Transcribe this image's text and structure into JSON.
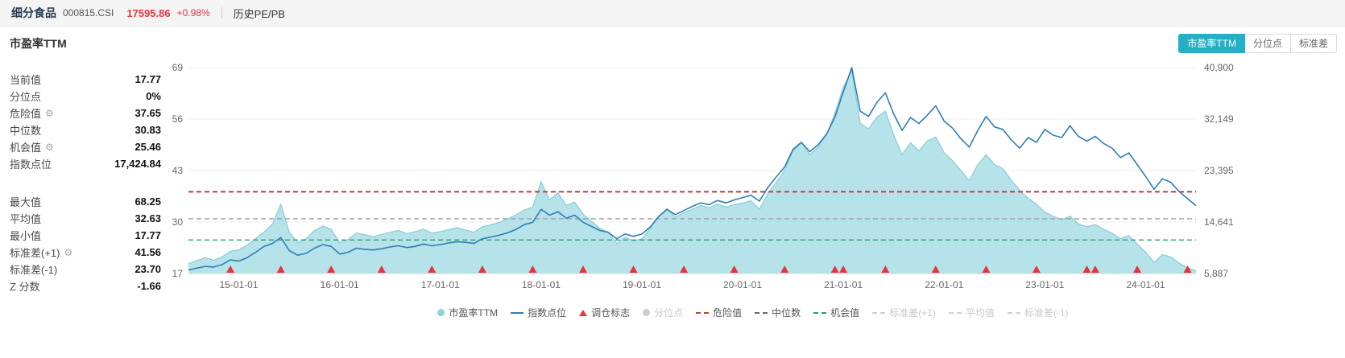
{
  "header": {
    "title": "细分食品",
    "code": "000815.CSI",
    "price": "17595.86",
    "change": "+0.98%",
    "nav_label": "历史PE/PB"
  },
  "section": {
    "title": "市盈率TTM",
    "tabs": [
      {
        "label": "市盈率TTM",
        "active": true
      },
      {
        "label": "分位点",
        "active": false
      },
      {
        "label": "标准差",
        "active": false
      }
    ]
  },
  "stats": {
    "groups": [
      {
        "rows": [
          {
            "label": "当前值",
            "value": "17.77"
          },
          {
            "label": "分位点",
            "value": "0%"
          },
          {
            "label": "危险值",
            "value": "37.65",
            "gear": true
          },
          {
            "label": "中位数",
            "value": "30.83"
          },
          {
            "label": "机会值",
            "value": "25.46",
            "gear": true
          },
          {
            "label": "指数点位",
            "value": "17,424.84"
          }
        ]
      },
      {
        "rows": [
          {
            "label": "最大值",
            "value": "68.25"
          },
          {
            "label": "平均值",
            "value": "32.63"
          },
          {
            "label": "最小值",
            "value": "17.77"
          },
          {
            "label": "标准差(+1)",
            "value": "41.56",
            "gear": true
          },
          {
            "label": "标准差(-1)",
            "value": "23.70"
          },
          {
            "label": "Z 分数",
            "value": "-1.66"
          }
        ]
      }
    ]
  },
  "chart_data": {
    "type": "line",
    "subtype": "area+line dual-axis time series",
    "title": "市盈率TTM",
    "x_unit": "month",
    "x_start": "2014-07",
    "x_labels": [
      "15-01-01",
      "16-01-01",
      "17-01-01",
      "18-01-01",
      "19-01-01",
      "20-01-01",
      "21-01-01",
      "22-01-01",
      "23-01-01",
      "24-01-01"
    ],
    "left_axis": {
      "name": "市盈率TTM",
      "min": 17,
      "max": 69,
      "ticks": [
        69,
        56,
        43,
        30,
        17
      ]
    },
    "right_axis": {
      "name": "指数点位",
      "min": 5887,
      "max": 40900,
      "ticks": [
        "40,900",
        "32,149",
        "23,395",
        "14,641",
        "5,887"
      ]
    },
    "grid": true,
    "series": [
      {
        "name": "市盈率TTM",
        "kind": "area",
        "axis": "left",
        "color": "#a9dde6",
        "edge_color": "#79c7d3",
        "values": [
          19.5,
          20.3,
          21.0,
          20.4,
          21.2,
          22.6,
          23.0,
          24.2,
          25.8,
          27.5,
          29.5,
          34.5,
          27.5,
          24.8,
          25.8,
          27.8,
          29.0,
          28.2,
          24.8,
          25.6,
          27.2,
          26.8,
          26.3,
          26.9,
          27.4,
          27.9,
          27.1,
          27.6,
          28.2,
          27.2,
          27.6,
          28.1,
          28.6,
          28.0,
          27.4,
          28.8,
          29.3,
          29.9,
          30.8,
          31.8,
          33.0,
          33.8,
          40.2,
          35.6,
          37.4,
          34.2,
          35.0,
          32.0,
          30.2,
          28.4,
          27.4,
          24.6,
          26.2,
          25.2,
          25.8,
          28.4,
          31.4,
          33.4,
          31.2,
          32.4,
          33.2,
          34.2,
          33.6,
          34.6,
          33.8,
          34.4,
          34.8,
          35.4,
          33.2,
          37.2,
          40.0,
          43.0,
          48.0,
          50.0,
          47.0,
          49.0,
          52.0,
          57.5,
          64.0,
          68.25,
          55.0,
          53.5,
          56.5,
          58.0,
          52.0,
          47.0,
          50.0,
          48.0,
          50.5,
          51.5,
          47.5,
          45.5,
          43.0,
          40.5,
          44.5,
          47.0,
          44.5,
          43.5,
          40.5,
          38.0,
          36.0,
          34.5,
          32.5,
          31.5,
          30.5,
          31.5,
          29.5,
          28.8,
          29.4,
          28.2,
          27.2,
          25.8,
          26.6,
          24.4,
          22.4,
          19.8,
          21.8,
          21.2,
          19.6,
          18.4,
          17.77
        ]
      },
      {
        "name": "指数点位",
        "kind": "line",
        "axis": "right",
        "color": "#2f7eb5",
        "values": [
          6500,
          6800,
          7100,
          7000,
          7400,
          8200,
          8000,
          8600,
          9500,
          10500,
          11000,
          12000,
          9800,
          9000,
          9300,
          10200,
          10800,
          10500,
          9200,
          9500,
          10200,
          10000,
          9900,
          10100,
          10400,
          10600,
          10300,
          10500,
          10900,
          10600,
          10800,
          11100,
          11300,
          11200,
          11000,
          11800,
          12100,
          12400,
          12800,
          13400,
          14200,
          14600,
          16800,
          15800,
          16400,
          15300,
          15800,
          14600,
          13900,
          13200,
          12900,
          11800,
          12600,
          12200,
          12600,
          13800,
          15600,
          16800,
          15900,
          16600,
          17300,
          17900,
          17600,
          18300,
          17900,
          18400,
          18800,
          19200,
          18200,
          20500,
          22300,
          24000,
          27000,
          28200,
          26600,
          27800,
          29600,
          32500,
          36800,
          40900,
          33500,
          32600,
          35000,
          36600,
          33000,
          30200,
          32400,
          31400,
          32800,
          34400,
          31800,
          30600,
          28800,
          27400,
          30200,
          32600,
          30800,
          30400,
          28600,
          27200,
          29000,
          28200,
          30400,
          29400,
          29000,
          31000,
          29200,
          28400,
          29200,
          28000,
          27200,
          25600,
          26400,
          24400,
          22400,
          20200,
          22000,
          21400,
          19800,
          18600,
          17424.84
        ]
      }
    ],
    "reference_lines": [
      {
        "name": "危险值",
        "value": 37.65,
        "axis": "left",
        "color": "#c23b3b",
        "style": "dashed",
        "width": 2
      },
      {
        "name": "中位数",
        "value": 30.83,
        "axis": "left",
        "color": "#9aa0a6",
        "style": "dashed",
        "width": 1.4
      },
      {
        "name": "机会值",
        "value": 25.46,
        "axis": "left",
        "color": "#2aa06a",
        "style": "dashed",
        "width": 1.4
      }
    ],
    "markers": {
      "name": "调仓标志",
      "shape": "triangle-up",
      "color": "#e5353a",
      "dates": [
        "2014-12",
        "2015-06",
        "2015-12",
        "2016-06",
        "2016-12",
        "2017-06",
        "2017-12",
        "2018-06",
        "2018-12",
        "2019-06",
        "2019-12",
        "2020-06",
        "2020-12",
        "2021-01",
        "2021-06",
        "2021-12",
        "2022-06",
        "2022-12",
        "2023-06",
        "2023-07",
        "2023-12",
        "2024-06"
      ]
    }
  },
  "legend": [
    {
      "label": "市盈率TTM",
      "marker": "circle",
      "color": "#8fd3dc",
      "disabled": false
    },
    {
      "label": "指数点位",
      "marker": "line",
      "color": "#2f7eb5",
      "disabled": false
    },
    {
      "label": "调仓标志",
      "marker": "triangle",
      "color": "#e5353a",
      "disabled": false
    },
    {
      "label": "分位点",
      "marker": "circle",
      "color": "#cccccc",
      "disabled": true
    },
    {
      "label": "危险值",
      "marker": "dash",
      "color": "#c23b3b",
      "disabled": false
    },
    {
      "label": "中位数",
      "marker": "dash",
      "color": "#5f6a75",
      "disabled": false
    },
    {
      "label": "机会值",
      "marker": "dash",
      "color": "#2aa06a",
      "disabled": false
    },
    {
      "label": "标准差(+1)",
      "marker": "dash",
      "color": "#d0d0d0",
      "disabled": true
    },
    {
      "label": "平均值",
      "marker": "dash",
      "color": "#d0d0d0",
      "disabled": true
    },
    {
      "label": "标准差(-1)",
      "marker": "dash",
      "color": "#d0d0d0",
      "disabled": true
    }
  ]
}
